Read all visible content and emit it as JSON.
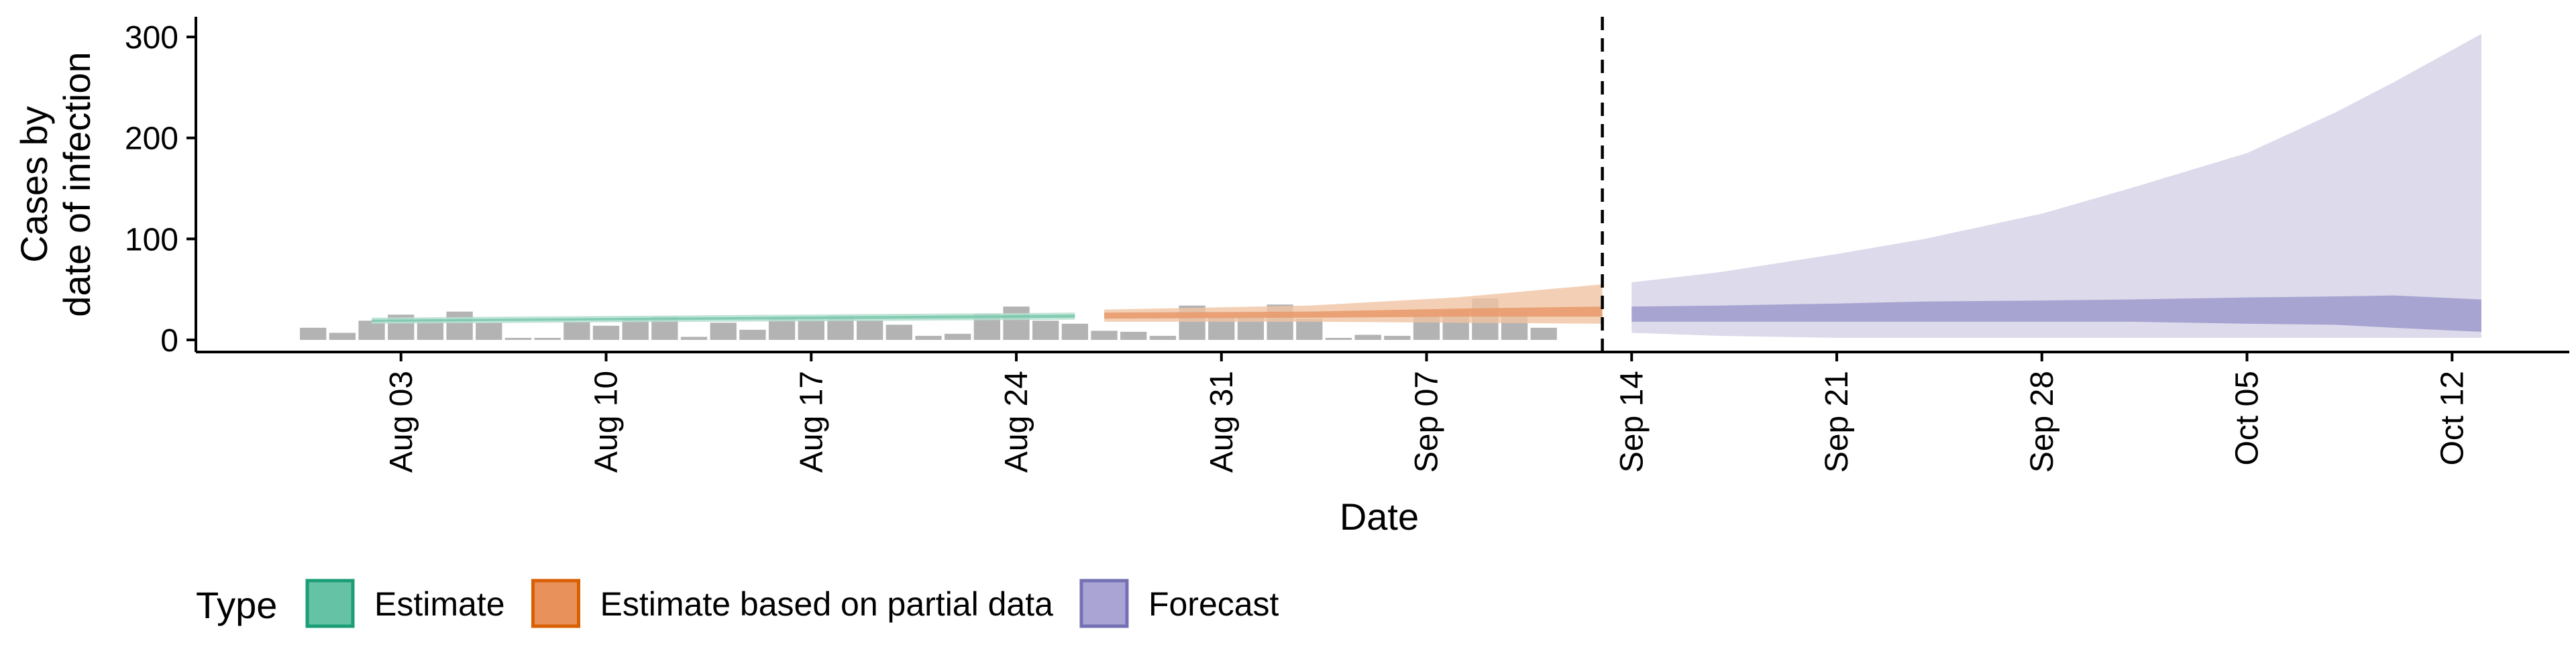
{
  "chart_data": {
    "type": "area",
    "xlabel": "Date",
    "ylabel_lines": [
      "Cases by",
      "date of infection"
    ],
    "x_range": [
      "2021-07-27",
      "2021-10-16"
    ],
    "ylim": [
      -12,
      320
    ],
    "yticks": [
      0,
      100,
      200,
      300
    ],
    "xticks": [
      {
        "date": "2021-08-03",
        "label": "Aug 03"
      },
      {
        "date": "2021-08-10",
        "label": "Aug 10"
      },
      {
        "date": "2021-08-17",
        "label": "Aug 17"
      },
      {
        "date": "2021-08-24",
        "label": "Aug 24"
      },
      {
        "date": "2021-08-31",
        "label": "Aug 31"
      },
      {
        "date": "2021-09-07",
        "label": "Sep 07"
      },
      {
        "date": "2021-09-14",
        "label": "Sep 14"
      },
      {
        "date": "2021-09-21",
        "label": "Sep 21"
      },
      {
        "date": "2021-09-28",
        "label": "Sep 28"
      },
      {
        "date": "2021-10-05",
        "label": "Oct 05"
      },
      {
        "date": "2021-10-12",
        "label": "Oct 12"
      }
    ],
    "forecast_cutoff": "2021-09-13",
    "grid": false,
    "legend_position": "bottom-left",
    "legend_title": "Type",
    "legend_items": [
      {
        "label": "Estimate",
        "fill": "#66c2a5",
        "stroke": "#1b9e77"
      },
      {
        "label": "Estimate based on partial data",
        "fill": "#e8915a",
        "stroke": "#d95f02"
      },
      {
        "label": "Forecast",
        "fill": "#a9a4d4",
        "stroke": "#7570b3"
      }
    ],
    "colors": {
      "observed_bars": "#b3b3b3",
      "estimate_outer": "#b5dfd0",
      "estimate_inner": "#7cc9ae",
      "partial_outer": "#f0c4a3",
      "partial_inner": "#e89b6e",
      "forecast_outer": "#dcdaeb",
      "forecast_inner": "#a8a4d2"
    },
    "observed": {
      "start_date": "2021-07-31",
      "values": [
        12,
        7,
        19,
        25,
        21,
        28,
        17,
        2,
        0,
        18,
        14,
        21,
        23,
        3,
        17,
        10,
        23,
        20,
        24,
        19,
        15,
        4,
        6,
        26,
        33,
        19,
        16,
        9,
        8,
        4,
        34,
        23,
        22,
        35,
        21,
        2,
        5,
        4,
        24,
        29,
        41,
        27,
        12
      ]
    },
    "series": [
      {
        "name": "Estimate",
        "dates": [
          "2021-08-02",
          "2021-08-26"
        ],
        "outer_lo": [
          16,
          20
        ],
        "outer_hi": [
          22,
          27
        ],
        "inner_lo": [
          18,
          22
        ],
        "inner_hi": [
          20,
          25
        ]
      },
      {
        "name": "Estimate based on partial data",
        "dates": [
          "2021-08-27",
          "2021-09-03",
          "2021-09-08",
          "2021-09-13"
        ],
        "outer_lo": [
          18,
          18,
          17,
          16
        ],
        "outer_hi": [
          30,
          34,
          42,
          55
        ],
        "inner_lo": [
          21,
          22,
          23,
          23
        ],
        "inner_hi": [
          27,
          28,
          31,
          33
        ]
      },
      {
        "name": "Forecast",
        "dates": [
          "2021-09-14",
          "2021-09-17",
          "2021-09-21",
          "2021-09-24",
          "2021-09-28",
          "2021-10-01",
          "2021-10-05",
          "2021-10-08",
          "2021-10-10",
          "2021-10-13"
        ],
        "outer_lo": [
          7,
          4,
          2,
          2,
          2,
          2,
          2,
          2,
          2,
          2
        ],
        "outer_hi": [
          57,
          67,
          85,
          100,
          125,
          150,
          185,
          225,
          255,
          303
        ],
        "inner_lo": [
          18,
          18,
          18,
          18,
          18,
          18,
          16,
          15,
          12,
          8
        ],
        "inner_hi": [
          33,
          34,
          36,
          38,
          39,
          40,
          42,
          43,
          44,
          40
        ]
      }
    ]
  }
}
